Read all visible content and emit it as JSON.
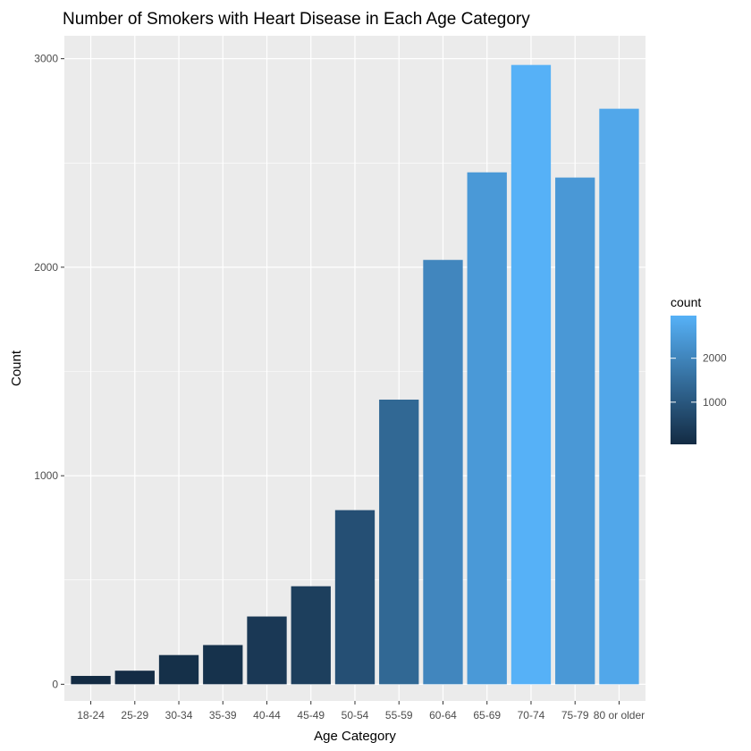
{
  "chart_data": {
    "type": "bar",
    "title": "Number of Smokers with Heart Disease in Each Age Category",
    "xlabel": "Age Category",
    "ylabel": "Count",
    "categories": [
      "18-24",
      "25-29",
      "30-34",
      "35-39",
      "40-44",
      "45-49",
      "50-54",
      "55-59",
      "60-64",
      "65-69",
      "70-74",
      "75-79",
      "80 or older"
    ],
    "values": [
      40,
      65,
      140,
      188,
      325,
      470,
      835,
      1365,
      2035,
      2455,
      2970,
      2430,
      2760
    ],
    "ylim": [
      -80,
      3110
    ],
    "yticks": [
      0,
      1000,
      2000,
      3000
    ],
    "grid": true,
    "legend": {
      "title": "count",
      "position": "right",
      "ticks": [
        1000,
        2000
      ],
      "range": [
        40,
        2970
      ],
      "low_color": "#132B43",
      "high_color": "#56B1F7"
    },
    "colors": {
      "panel_background": "#EBEBEB",
      "grid_major": "#FFFFFF"
    }
  }
}
